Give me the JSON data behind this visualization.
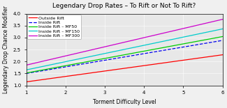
{
  "title": "Legendary Drop Rates – To Rift or Not To Rift?",
  "xlabel": "Torment Difficulty Level",
  "ylabel": "Legendary Drop Chance Modifier",
  "xlim": [
    1,
    6
  ],
  "ylim": [
    1,
    4
  ],
  "xticks": [
    1,
    2,
    3,
    4,
    5,
    6
  ],
  "yticks": [
    1.0,
    1.5,
    2.0,
    2.5,
    3.0,
    3.5,
    4.0
  ],
  "x_start": 1,
  "x_end": 6,
  "lines": [
    {
      "label": "Outside Rift",
      "color": "#ff0000",
      "linestyle": "-",
      "y_start": 1.15,
      "y_end": 2.28
    },
    {
      "label": "Inside Rift",
      "color": "#0000ee",
      "linestyle": "--",
      "y_start": 1.5,
      "y_end": 2.88
    },
    {
      "label": "Inside Rift – MF50",
      "color": "#00cc00",
      "linestyle": "-",
      "y_start": 1.52,
      "y_end": 3.04
    },
    {
      "label": "Inside Rift – MF150",
      "color": "#00cccc",
      "linestyle": "-",
      "y_start": 1.65,
      "y_end": 3.36
    },
    {
      "label": "Inside Rift – MF300",
      "color": "#cc00cc",
      "linestyle": "-",
      "y_start": 1.85,
      "y_end": 3.76
    }
  ],
  "legend_loc": "upper left",
  "title_fontsize": 6.5,
  "label_fontsize": 5.5,
  "tick_fontsize": 5.0,
  "legend_fontsize": 4.5,
  "linewidth": 0.9,
  "axes_facecolor": "#e8e8e8",
  "fig_facecolor": "#f0f0f0"
}
